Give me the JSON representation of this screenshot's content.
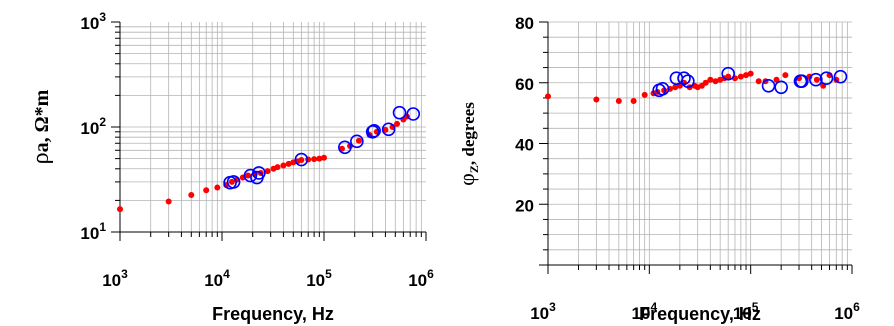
{
  "colors": {
    "red_series": "#ff0000",
    "blue_series": "#0000ff",
    "grid": "#b4b4b4",
    "axis": "#000000"
  },
  "chart_data": [
    {
      "type": "scatter",
      "panel": "left",
      "xlabel": "Frequency, Hz",
      "ylabel": {
        "symbol": "ρ",
        "subscript": "a",
        "rest": ", Ω*m"
      },
      "x_scale": "log",
      "y_scale": "log",
      "xlim": [
        1000,
        1000000
      ],
      "ylim": [
        10,
        1000
      ],
      "grid": true,
      "x_ticks": [
        {
          "value": 1000,
          "base": "10",
          "exp": "3"
        },
        {
          "value": 10000,
          "base": "10",
          "exp": "4"
        },
        {
          "value": 100000,
          "base": "10",
          "exp": "5"
        },
        {
          "value": 1000000,
          "base": "10",
          "exp": "6"
        }
      ],
      "y_ticks": [
        {
          "value": 10,
          "base": "10",
          "exp": "1"
        },
        {
          "value": 100,
          "base": "10",
          "exp": "2"
        },
        {
          "value": 1000,
          "base": "10",
          "exp": "3"
        }
      ],
      "series": [
        {
          "marker": "dot",
          "color": "#ff0000",
          "points": [
            [
              1000,
              16.5
            ],
            [
              3000,
              19.5
            ],
            [
              5000,
              22.5
            ],
            [
              7000,
              25
            ],
            [
              9000,
              26.5
            ],
            [
              11000,
              28
            ],
            [
              12500,
              30
            ],
            [
              14000,
              31.5
            ],
            [
              16000,
              33
            ],
            [
              18000,
              34.5
            ],
            [
              21000,
              36
            ],
            [
              24000,
              36.5
            ],
            [
              28000,
              38
            ],
            [
              32000,
              40
            ],
            [
              35000,
              41.5
            ],
            [
              40000,
              43
            ],
            [
              45000,
              44.5
            ],
            [
              50000,
              46
            ],
            [
              55000,
              47
            ],
            [
              60000,
              48.5
            ],
            [
              70000,
              49
            ],
            [
              80000,
              49.5
            ],
            [
              90000,
              50
            ],
            [
              100000,
              51
            ],
            [
              150000,
              62
            ],
            [
              180000,
              66
            ],
            [
              220000,
              74
            ],
            [
              280000,
              84
            ],
            [
              330000,
              90
            ],
            [
              400000,
              94
            ],
            [
              470000,
              100
            ],
            [
              520000,
              107
            ],
            [
              600000,
              118
            ],
            [
              650000,
              126
            ]
          ]
        },
        {
          "marker": "circle",
          "color": "#0000ff",
          "points": [
            [
              12000,
              29.5
            ],
            [
              13000,
              30
            ],
            [
              19000,
              34.5
            ],
            [
              22000,
              33
            ],
            [
              23000,
              36.5
            ],
            [
              60000,
              49
            ],
            [
              160000,
              64
            ],
            [
              210000,
              73
            ],
            [
              300000,
              90
            ],
            [
              310000,
              92
            ],
            [
              430000,
              95
            ],
            [
              550000,
              137
            ],
            [
              750000,
              133
            ]
          ]
        }
      ]
    },
    {
      "type": "scatter",
      "panel": "right",
      "xlabel": "Frequency, Hz",
      "ylabel": {
        "symbol": "φ",
        "subscript": "Z",
        "rest": ", degrees"
      },
      "x_scale": "log",
      "y_scale": "linear",
      "xlim": [
        1000,
        1000000
      ],
      "ylim": [
        0,
        80
      ],
      "grid": true,
      "x_ticks": [
        {
          "value": 1000,
          "base": "10",
          "exp": "3"
        },
        {
          "value": 10000,
          "base": "10",
          "exp": "4"
        },
        {
          "value": 100000,
          "base": "10",
          "exp": "5"
        },
        {
          "value": 1000000,
          "base": "10",
          "exp": "6"
        }
      ],
      "y_ticks": [
        {
          "value": 20,
          "label": "20"
        },
        {
          "value": 40,
          "label": "40"
        },
        {
          "value": 60,
          "label": "60"
        },
        {
          "value": 80,
          "label": "80"
        }
      ],
      "series": [
        {
          "marker": "dot",
          "color": "#ff0000",
          "points": [
            [
              1000,
              55.5
            ],
            [
              3000,
              54.5
            ],
            [
              5000,
              54
            ],
            [
              7000,
              54
            ],
            [
              9000,
              56
            ],
            [
              11000,
              56.5
            ],
            [
              12000,
              57
            ],
            [
              14000,
              57.5
            ],
            [
              16000,
              58
            ],
            [
              18000,
              58.5
            ],
            [
              20000,
              59
            ],
            [
              22000,
              60
            ],
            [
              25000,
              58.5
            ],
            [
              28000,
              59
            ],
            [
              30000,
              58.5
            ],
            [
              33000,
              59
            ],
            [
              36000,
              60
            ],
            [
              40000,
              61
            ],
            [
              45000,
              60.5
            ],
            [
              50000,
              61
            ],
            [
              55000,
              61.5
            ],
            [
              60000,
              62
            ],
            [
              70000,
              61.5
            ],
            [
              80000,
              62
            ],
            [
              90000,
              62.5
            ],
            [
              100000,
              63
            ],
            [
              120000,
              60.5
            ],
            [
              140000,
              60.5
            ],
            [
              180000,
              61
            ],
            [
              220000,
              62.5
            ],
            [
              300000,
              61.5
            ],
            [
              380000,
              62
            ],
            [
              450000,
              61
            ],
            [
              520000,
              59
            ],
            [
              600000,
              62.5
            ],
            [
              700000,
              61
            ]
          ]
        },
        {
          "marker": "circle",
          "color": "#0000ff",
          "points": [
            [
              12500,
              57.5
            ],
            [
              13500,
              58
            ],
            [
              18500,
              61.5
            ],
            [
              22000,
              61.5
            ],
            [
              24000,
              60.5
            ],
            [
              60000,
              63
            ],
            [
              150000,
              59
            ],
            [
              200000,
              58.5
            ],
            [
              310000,
              60.5
            ],
            [
              320000,
              60.5
            ],
            [
              440000,
              61
            ],
            [
              560000,
              61.5
            ],
            [
              770000,
              62
            ]
          ]
        }
      ]
    }
  ]
}
